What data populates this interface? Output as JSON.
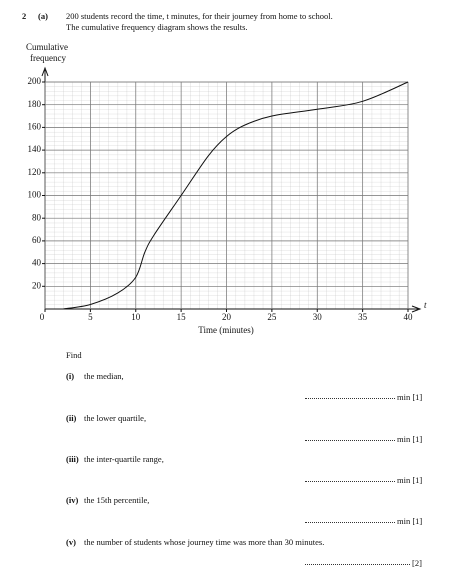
{
  "question": {
    "number": "2",
    "part": "(a)",
    "intro": [
      "200 students record the time, t minutes, for their journey from home to school.",
      "The cumulative frequency diagram shows the results."
    ]
  },
  "chart_data": {
    "type": "line",
    "ylabel": [
      "Cumulative",
      "frequency"
    ],
    "xlabel": "Time (minutes)",
    "xaxis_symbol": "t",
    "xlim": [
      0,
      40
    ],
    "ylim": [
      0,
      200
    ],
    "xticks": [
      0,
      5,
      10,
      15,
      20,
      25,
      30,
      35,
      40
    ],
    "yticks": [
      20,
      40,
      60,
      80,
      100,
      120,
      140,
      160,
      180,
      200
    ],
    "grid": true,
    "x": [
      2,
      5,
      8,
      10,
      11,
      12,
      15,
      18,
      20,
      22,
      25,
      30,
      35,
      40
    ],
    "series": [
      {
        "name": "Cumulative frequency",
        "color": "#111111",
        "values": [
          0,
          4,
          14,
          28,
          50,
          65,
          100,
          135,
          152,
          162,
          170,
          176,
          183,
          200
        ]
      }
    ]
  },
  "find": "Find",
  "parts": [
    {
      "label": "(i)",
      "text": "the median,",
      "answer": "min [1]"
    },
    {
      "label": "(ii)",
      "text": "the lower quartile,",
      "answer": "min [1]"
    },
    {
      "label": "(iii)",
      "text": "the inter-quartile range,",
      "answer": "min [1]"
    },
    {
      "label": "(iv)",
      "text": "the 15th percentile,",
      "answer": "min [1]"
    },
    {
      "label": "(v)",
      "text": "the number of students whose journey time was more than 30 minutes.",
      "answer": "[2]"
    }
  ]
}
